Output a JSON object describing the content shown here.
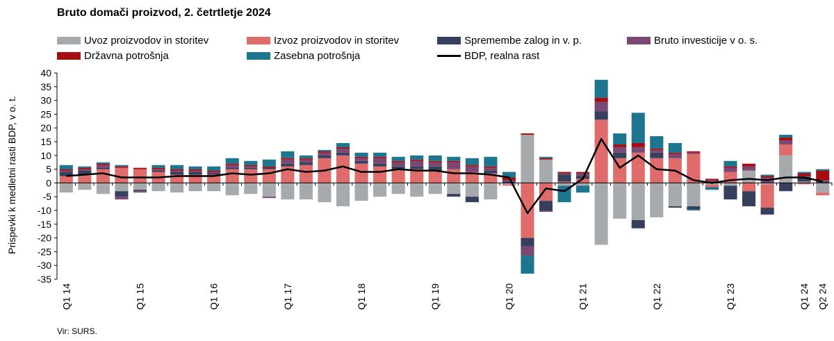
{
  "chart_data": {
    "type": "bar",
    "title": "Bruto domači proizvod, 2. četrtletje 2024",
    "ylabel": "Prispevki k medletni rasti BDP, v o. t.",
    "source": "Vir: SURS.",
    "ylim": [
      -35,
      40
    ],
    "yticks": [
      40,
      35,
      30,
      25,
      20,
      15,
      10,
      5,
      0,
      -5,
      -10,
      -15,
      -20,
      -25,
      -30,
      -35
    ],
    "stacked": true,
    "grid": false,
    "legend_position": "top",
    "categories": [
      "Q1 14",
      "Q2 14",
      "Q3 14",
      "Q4 14",
      "Q1 15",
      "Q2 15",
      "Q3 15",
      "Q4 15",
      "Q1 16",
      "Q2 16",
      "Q3 16",
      "Q4 16",
      "Q1 17",
      "Q2 17",
      "Q3 17",
      "Q4 17",
      "Q1 18",
      "Q2 18",
      "Q3 18",
      "Q4 18",
      "Q1 19",
      "Q2 19",
      "Q3 19",
      "Q4 19",
      "Q1 20",
      "Q2 20",
      "Q3 20",
      "Q4 20",
      "Q1 21",
      "Q2 21",
      "Q3 21",
      "Q4 21",
      "Q1 22",
      "Q2 22",
      "Q3 22",
      "Q4 22",
      "Q1 23",
      "Q2 23",
      "Q3 23",
      "Q4 23",
      "Q1 24",
      "Q2 24"
    ],
    "x_tick_labels": [
      "Q1 14",
      "Q1 15",
      "Q1 16",
      "Q1 17",
      "Q1 18",
      "Q1 19",
      "Q1 20",
      "Q1 21",
      "Q1 22",
      "Q1 23",
      "Q1 24",
      "Q2 24"
    ],
    "series": [
      {
        "name": "Uvoz proizvodov in storitev",
        "color": "#a7aaad",
        "values": [
          -3.5,
          -2.5,
          -4,
          -3,
          -2.5,
          -3,
          -3.5,
          -3,
          -3,
          -4.5,
          -4,
          -5,
          -6,
          -6,
          -7,
          -8.5,
          -6.5,
          -5,
          -4,
          -5,
          -4,
          -4,
          -5,
          -6,
          -0.5,
          17.5,
          8.5,
          -1,
          -1,
          -22.5,
          -13,
          -13.5,
          -12.5,
          -8.5,
          -8.5,
          -0.5,
          -1,
          4.5,
          -0.5,
          10,
          0.5,
          -3.5
        ]
      },
      {
        "name": "Izvoz proizvodov in storitev",
        "color": "#e06b6b",
        "values": [
          2.5,
          3,
          5,
          5.5,
          5,
          4,
          3,
          3,
          3,
          5,
          5,
          5,
          6,
          6.5,
          9,
          10,
          7,
          6,
          5,
          5,
          4.5,
          5,
          4,
          3.5,
          -0.5,
          -20,
          -6.5,
          0.5,
          1.5,
          23,
          9,
          11,
          9,
          9,
          10.5,
          -1,
          4,
          -3,
          -8.5,
          4,
          -0.5,
          -1
        ]
      },
      {
        "name": "Spremembe zalog in v. p.",
        "color": "#363f5c",
        "values": [
          1.5,
          1.5,
          0.5,
          -2,
          -0.5,
          0.5,
          1,
          1,
          0.5,
          0.5,
          0.5,
          0.5,
          1,
          1,
          1,
          1,
          1,
          1,
          1,
          1,
          1.5,
          -1,
          -2,
          1,
          0.5,
          -3,
          -3.5,
          2.5,
          1,
          3,
          2,
          -3,
          2,
          -0.5,
          -1,
          0.5,
          -5,
          -5.5,
          -2.5,
          -3,
          1.5,
          0.5
        ]
      },
      {
        "name": "Bruto investicije v o. s.",
        "color": "#7a4872",
        "values": [
          0.5,
          0.5,
          1,
          -1,
          -0.5,
          0.5,
          0.5,
          0.5,
          0.5,
          1,
          0.5,
          -0.5,
          1.5,
          1,
          1,
          1.5,
          1,
          2,
          1.5,
          2,
          1.5,
          2.5,
          2,
          1,
          0.5,
          -3.5,
          -0.5,
          0.5,
          1,
          3.5,
          2,
          2,
          1,
          1.5,
          0.5,
          0.5,
          1.5,
          1.5,
          2,
          1.5,
          0.5,
          0.5
        ]
      },
      {
        "name": "Državna potrošnja",
        "color": "#a50d12",
        "values": [
          0.5,
          0.5,
          0.5,
          0.5,
          0.5,
          0.5,
          0.5,
          0.5,
          0.5,
          0.5,
          0.5,
          0.5,
          0.5,
          0.5,
          0.5,
          0.5,
          0.5,
          0.5,
          0.5,
          0.5,
          0.5,
          0.5,
          0.5,
          0.5,
          1,
          0.5,
          0.5,
          0.5,
          0.5,
          1.5,
          1,
          1.5,
          0.5,
          0.5,
          0.5,
          0.5,
          0.5,
          1,
          0.5,
          1,
          1,
          3.5
        ]
      },
      {
        "name": "Zasebna potrošnja",
        "color": "#1e7590",
        "values": [
          1.5,
          0.5,
          0.5,
          0.5,
          0,
          1,
          1.5,
          1,
          1.5,
          2,
          1.5,
          2.5,
          2.5,
          1,
          0.5,
          1.5,
          1.5,
          1.5,
          1.5,
          1.5,
          2,
          1.5,
          2.5,
          3.5,
          2,
          -6.5,
          0.5,
          -6,
          -2.5,
          6.5,
          4,
          11,
          4.5,
          3.5,
          -0.5,
          -1,
          2,
          0,
          0.5,
          1,
          0.5,
          0.5
        ]
      }
    ],
    "line": {
      "name": "BDP, realna rast",
      "color": "#000000",
      "values": [
        2.5,
        3,
        3.5,
        2,
        2,
        2,
        2.5,
        2.5,
        2.5,
        3.5,
        3,
        3.5,
        5,
        4,
        4.5,
        6,
        4,
        4,
        5,
        4.5,
        4.5,
        3.5,
        3.5,
        3,
        2,
        -11,
        -2,
        -3,
        1.5,
        16,
        5.5,
        10,
        5,
        4.5,
        1,
        0,
        1,
        1.5,
        1,
        2,
        2,
        0.5
      ]
    }
  }
}
